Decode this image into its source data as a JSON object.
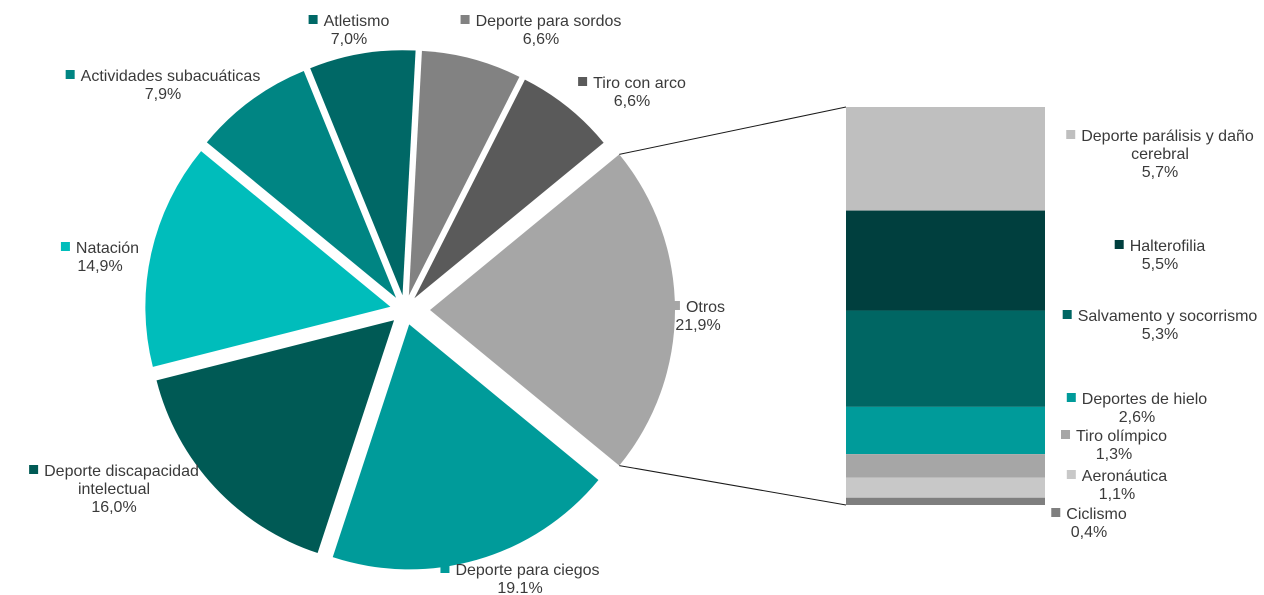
{
  "chart_data": {
    "type": "bar-of-pie",
    "pie": {
      "slices": [
        {
          "name": "Otros",
          "label_lines": [
            "Otros"
          ],
          "value": 21.9,
          "value_label": "21,9%",
          "color": "#a6a6a6"
        },
        {
          "name": "Deporte para ciegos",
          "label_lines": [
            "Deporte para ciegos"
          ],
          "value": 19.1,
          "value_label": "19.1%",
          "color": "#009b9a"
        },
        {
          "name": "Deporte discapacidad intelectual",
          "label_lines": [
            "Deporte discapacidad",
            "intelectual"
          ],
          "value": 16.0,
          "value_label": "16,0%",
          "color": "#005a55"
        },
        {
          "name": "Natación",
          "label_lines": [
            "Natación"
          ],
          "value": 14.9,
          "value_label": "14,9%",
          "color": "#00bdbb"
        },
        {
          "name": "Actividades subacuáticas",
          "label_lines": [
            "Actividades subacuáticas"
          ],
          "value": 7.9,
          "value_label": "7,9%",
          "color": "#008583"
        },
        {
          "name": "Atletismo",
          "label_lines": [
            "Atletismo"
          ],
          "value": 7.0,
          "value_label": "7,0%",
          "color": "#006866"
        },
        {
          "name": "Deporte para sordos",
          "label_lines": [
            "Deporte para sordos"
          ],
          "value": 6.6,
          "value_label": "6,6%",
          "color": "#828282"
        },
        {
          "name": "Tiro con arco",
          "label_lines": [
            "Tiro con arco"
          ],
          "value": 6.6,
          "value_label": "6,6%",
          "color": "#5a5a5a"
        }
      ]
    },
    "bar": {
      "segments": [
        {
          "name": "Deporte parálisis y daño cerebral",
          "label_lines": [
            "Deporte parálisis y daño",
            "cerebral"
          ],
          "value": 5.7,
          "value_label": "5,7%",
          "color": "#bfbfbf"
        },
        {
          "name": "Halterofilia",
          "label_lines": [
            "Halterofilia"
          ],
          "value": 5.5,
          "value_label": "5,5%",
          "color": "#003f3e"
        },
        {
          "name": "Salvamento y socorrismo",
          "label_lines": [
            "Salvamento y socorrismo"
          ],
          "value": 5.3,
          "value_label": "5,3%",
          "color": "#006663"
        },
        {
          "name": "Deportes de hielo",
          "label_lines": [
            "Deportes de hielo"
          ],
          "value": 2.6,
          "value_label": "2,6%",
          "color": "#009b9a"
        },
        {
          "name": "Tiro olímpico",
          "label_lines": [
            "Tiro olímpico"
          ],
          "value": 1.3,
          "value_label": "1,3%",
          "color": "#a6a6a6"
        },
        {
          "name": "Aeronáutica",
          "label_lines": [
            "Aeronáutica"
          ],
          "value": 1.1,
          "value_label": "1,1%",
          "color": "#c8c8c8"
        },
        {
          "name": "Ciclismo",
          "label_lines": [
            "Ciclismo"
          ],
          "value": 0.4,
          "value_label": "0,4%",
          "color": "#7f7f7f"
        }
      ]
    },
    "connector_color": "#1a1a1a"
  }
}
